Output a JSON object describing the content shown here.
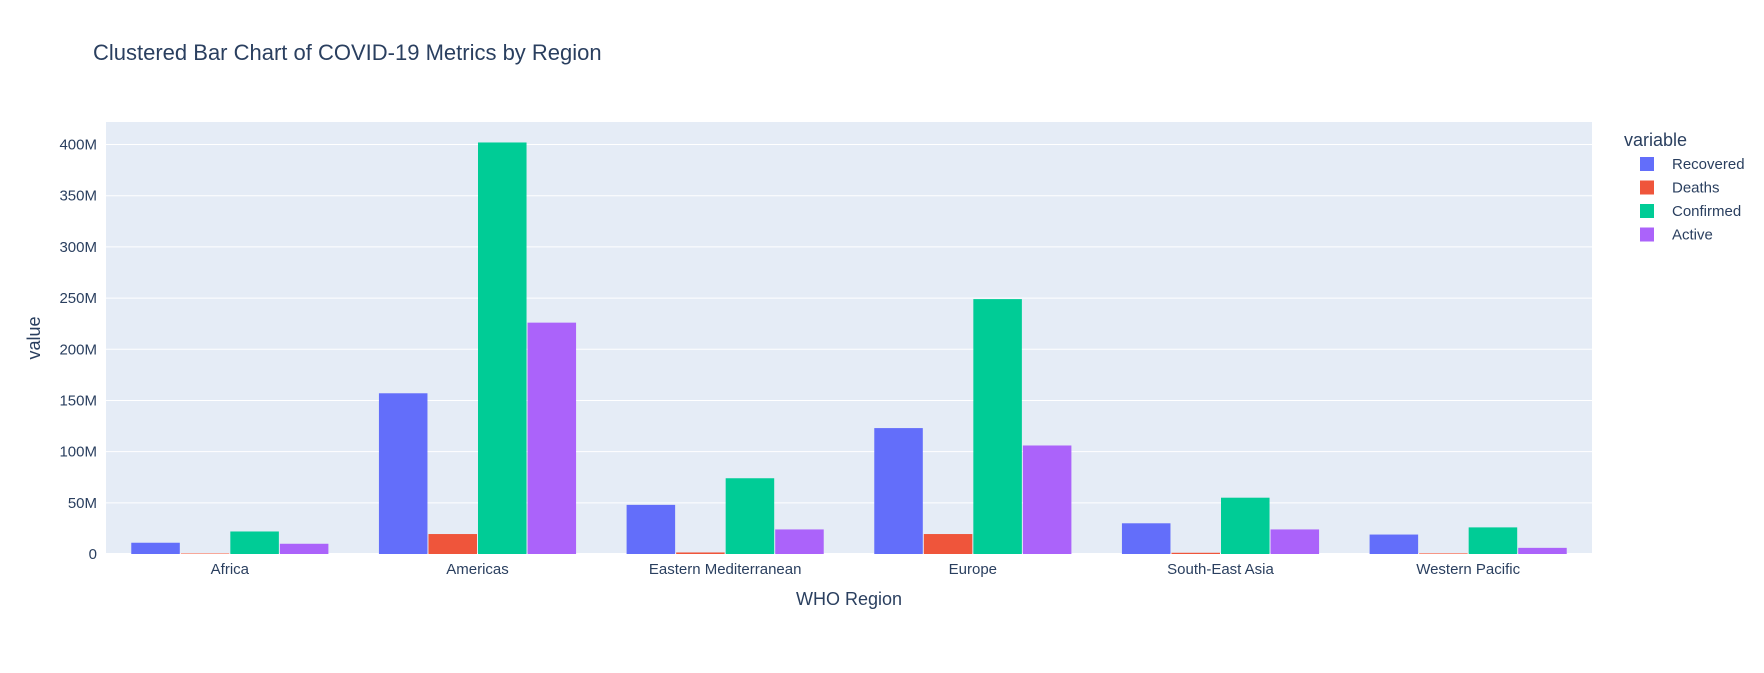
{
  "chart_data": {
    "type": "bar",
    "barmode": "group",
    "title": "Clustered Bar Chart of COVID-19 Metrics by Region",
    "xlabel": "WHO Region",
    "ylabel": "value",
    "legend_title": "variable",
    "legend_position": "top-right",
    "grid": true,
    "categories": [
      "Africa",
      "Americas",
      "Eastern Mediterranean",
      "Europe",
      "South-East Asia",
      "Western Pacific"
    ],
    "ylim": [
      0,
      422000000
    ],
    "yticks": [
      0,
      50000000,
      100000000,
      150000000,
      200000000,
      250000000,
      300000000,
      350000000,
      400000000
    ],
    "ytick_labels": [
      "0",
      "50M",
      "100M",
      "150M",
      "200M",
      "250M",
      "300M",
      "350M",
      "400M"
    ],
    "series": [
      {
        "name": "Recovered",
        "color": "#636efa",
        "values": [
          11000000,
          157000000,
          48000000,
          123000000,
          30000000,
          19000000
        ]
      },
      {
        "name": "Deaths",
        "color": "#ef553b",
        "values": [
          500000,
          19500000,
          1500000,
          19500000,
          1200000,
          600000
        ]
      },
      {
        "name": "Confirmed",
        "color": "#00cc96",
        "values": [
          22000000,
          402000000,
          74000000,
          249000000,
          55000000,
          26000000
        ]
      },
      {
        "name": "Active",
        "color": "#ab63fa",
        "values": [
          10000000,
          226000000,
          24000000,
          106000000,
          24000000,
          6000000
        ]
      }
    ]
  },
  "colors": {
    "plot_background": "#e5ecf6",
    "gridline": "#ffffff",
    "text": "#2a3f5f"
  }
}
